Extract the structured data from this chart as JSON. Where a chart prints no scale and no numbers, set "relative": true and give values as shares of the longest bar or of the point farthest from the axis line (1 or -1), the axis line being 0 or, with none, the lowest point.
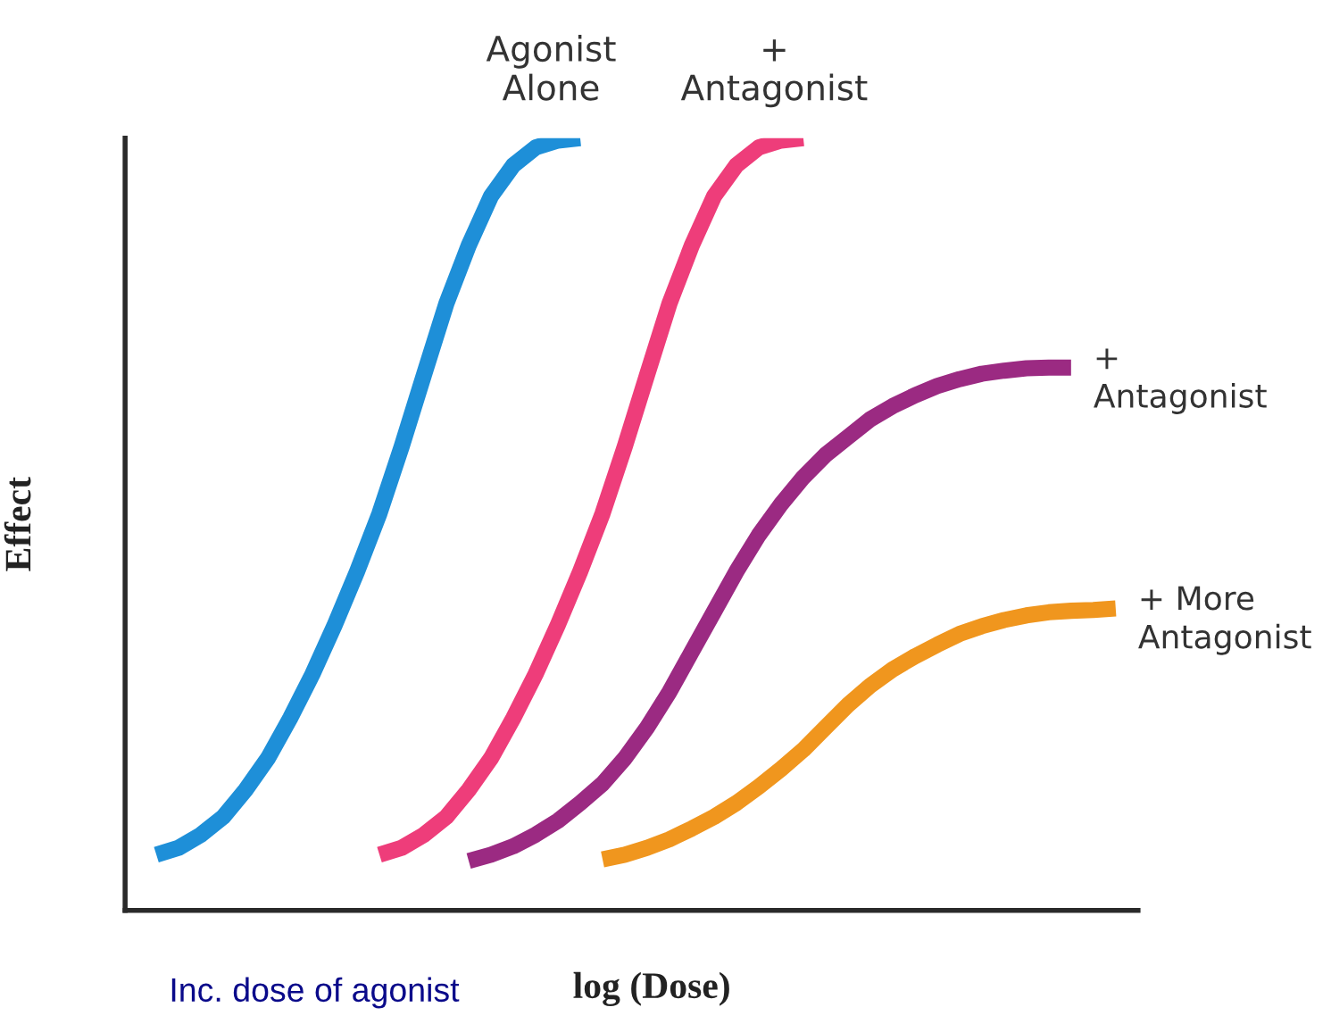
{
  "chart_data": {
    "type": "line",
    "relative": true,
    "xlabel": "log (Dose)",
    "ylabel": "Effect",
    "annotations": [
      "Inc. dose of agonist"
    ],
    "categories": [
      null,
      null,
      null,
      null,
      null,
      null,
      null,
      null,
      null,
      null,
      null,
      null,
      null,
      null,
      null,
      null,
      null,
      null,
      null,
      null,
      null,
      null,
      null,
      null,
      null,
      null,
      null,
      null,
      null,
      null,
      null,
      null,
      null,
      null,
      null,
      null,
      null,
      null,
      null,
      null,
      null,
      null,
      null,
      null,
      null
    ],
    "marker": "none",
    "line_style": "solid",
    "series": [
      {
        "name": "Agonist\nAlone",
        "color": "#1e8fd8",
        "values": [
          null,
          0.072,
          0.081,
          0.098,
          0.121,
          0.156,
          0.197,
          0.249,
          0.306,
          0.37,
          0.439,
          0.514,
          0.601,
          0.694,
          0.786,
          0.861,
          0.925,
          0.965,
          0.988,
          0.997,
          1.0,
          null,
          null,
          null,
          null,
          null,
          null,
          null,
          null,
          null,
          null,
          null,
          null,
          null,
          null,
          null,
          null,
          null,
          null,
          null,
          null,
          null,
          null,
          null,
          null
        ]
      },
      {
        "name": "+\nAntagonist",
        "color": "#ee3d7a",
        "values": [
          null,
          null,
          null,
          null,
          null,
          null,
          null,
          null,
          null,
          null,
          null,
          0.072,
          0.081,
          0.098,
          0.121,
          0.156,
          0.197,
          0.249,
          0.306,
          0.37,
          0.439,
          0.514,
          0.601,
          0.694,
          0.786,
          0.861,
          0.925,
          0.965,
          0.988,
          0.997,
          1.0,
          null,
          null,
          null,
          null,
          null,
          null,
          null,
          null,
          null,
          null,
          null,
          null,
          null,
          null
        ]
      },
      {
        "name": "+\nAntagonist",
        "color": "#9b2a82",
        "values": [
          null,
          null,
          null,
          null,
          null,
          null,
          null,
          null,
          null,
          null,
          null,
          null,
          null,
          null,
          null,
          0.064,
          0.072,
          0.083,
          0.098,
          0.116,
          0.139,
          0.164,
          0.197,
          0.237,
          0.283,
          0.335,
          0.387,
          0.439,
          0.486,
          0.526,
          0.561,
          0.59,
          0.613,
          0.636,
          0.653,
          0.667,
          0.679,
          0.688,
          0.695,
          0.699,
          0.702,
          0.703,
          0.703,
          null,
          null
        ]
      },
      {
        "name": "+ More\nAntagonist",
        "color": "#f0961e",
        "values": [
          null,
          null,
          null,
          null,
          null,
          null,
          null,
          null,
          null,
          null,
          null,
          null,
          null,
          null,
          null,
          null,
          null,
          null,
          null,
          null,
          null,
          0.066,
          0.072,
          0.081,
          0.092,
          0.106,
          0.121,
          0.139,
          0.16,
          0.183,
          0.208,
          0.237,
          0.266,
          0.291,
          0.312,
          0.329,
          0.344,
          0.358,
          0.368,
          0.376,
          0.382,
          0.386,
          0.388,
          0.389,
          0.391
        ]
      }
    ]
  }
}
